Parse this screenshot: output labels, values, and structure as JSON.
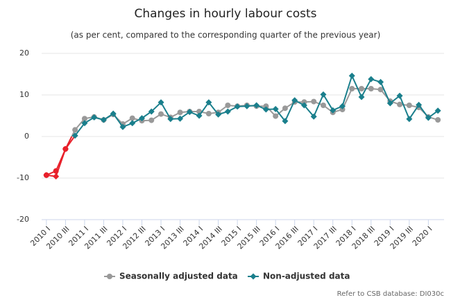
{
  "chart_data": {
    "type": "line",
    "title": "Changes in hourly labour costs",
    "subtitle": "(as per cent, compared to the corresponding quarter of the previous year)",
    "categories": [
      "2010 I",
      null,
      "2010 III",
      null,
      "2011 I",
      null,
      "2011 III",
      null,
      "2012 I",
      null,
      "2012 III",
      null,
      "2013 I",
      null,
      "2013 III",
      null,
      "2014 I",
      null,
      "2014 III",
      null,
      "2015 I",
      null,
      "2015 III",
      null,
      "2016 I",
      null,
      "2016 III",
      null,
      "2017 I",
      null,
      "2017 III",
      null,
      "2018 I",
      null,
      "2018 III",
      null,
      "2019 I",
      null,
      "2019 III",
      null,
      "2020 I",
      null
    ],
    "series": [
      {
        "name": "Seasonally adjusted data",
        "color": "#999999",
        "marker": "circle",
        "values": [
          -9.3,
          -8.3,
          -3.0,
          1.6,
          4.3,
          4.7,
          4.0,
          5.3,
          3.0,
          4.4,
          3.8,
          3.9,
          5.4,
          4.6,
          5.8,
          6.0,
          6.0,
          5.5,
          5.8,
          7.5,
          7.3,
          7.5,
          7.3,
          7.3,
          4.9,
          6.8,
          8.3,
          8.3,
          8.4,
          7.5,
          5.8,
          6.5,
          11.5,
          11.5,
          11.5,
          11.3,
          8.5,
          7.7,
          7.5,
          7.0,
          4.7,
          4.0
        ]
      },
      {
        "name": "Non-adjusted data",
        "color": "#1a7f8c",
        "marker": "diamond",
        "values": [
          -9.3,
          -9.6,
          -3.0,
          0.2,
          3.2,
          4.6,
          4.0,
          5.5,
          2.3,
          3.2,
          4.4,
          6.0,
          8.2,
          4.2,
          4.3,
          5.9,
          5.0,
          8.2,
          5.3,
          6.0,
          7.2,
          7.3,
          7.5,
          6.5,
          6.6,
          3.7,
          8.7,
          7.5,
          4.8,
          10.1,
          6.3,
          7.3,
          14.6,
          9.5,
          13.8,
          13.1,
          8.0,
          9.8,
          4.2,
          7.6,
          4.5,
          6.2
        ]
      }
    ],
    "negative_color": "#e8202a",
    "ylim": [
      -20,
      20
    ],
    "yticks": [
      -20,
      -10,
      0,
      10,
      20
    ],
    "grid": true,
    "legend": "bottom",
    "credits": "Refer to CSB database: DI030c"
  }
}
